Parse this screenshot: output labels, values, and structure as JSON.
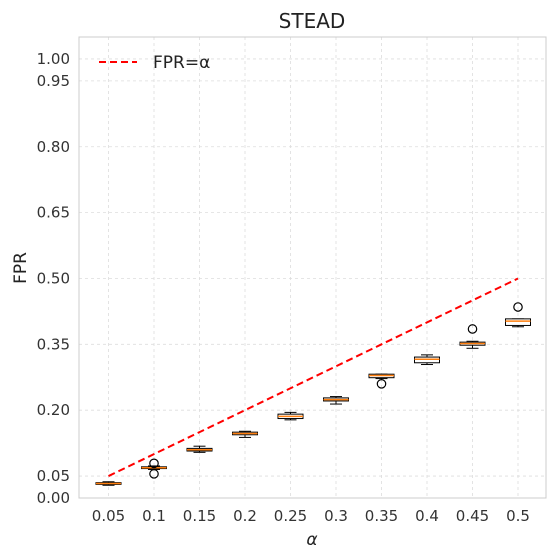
{
  "chart_data": {
    "type": "box",
    "title": "STEAD",
    "xlabel": "α",
    "ylabel": "FPR",
    "ylim": [
      0.0,
      1.05
    ],
    "yticks": [
      "0.00",
      "0.05",
      "0.20",
      "0.35",
      "0.50",
      "0.65",
      "0.80",
      "0.95",
      "1.00"
    ],
    "grid": true,
    "legend": {
      "placement": "top-left",
      "entries": [
        "FPR=α"
      ]
    },
    "colors": {
      "reference_line": "#ff0000",
      "median": "#ff7f0e",
      "box": "#000000",
      "grid": "#dddddd",
      "frame": "#cccccc"
    },
    "categories": [
      "0.05",
      "0.1",
      "0.15",
      "0.2",
      "0.25",
      "0.3",
      "0.35",
      "0.4",
      "0.45",
      "0.5"
    ],
    "reference_line": {
      "name": "FPR=α",
      "x": [
        0.05,
        0.5
      ],
      "y": [
        0.05,
        0.5
      ]
    },
    "boxes": [
      {
        "min": 0.029,
        "q1": 0.031,
        "median": 0.033,
        "q3": 0.035,
        "max": 0.037,
        "outliers": []
      },
      {
        "min": 0.065,
        "q1": 0.067,
        "median": 0.069,
        "q3": 0.071,
        "max": 0.073,
        "outliers": [
          0.055,
          0.079
        ]
      },
      {
        "min": 0.104,
        "q1": 0.107,
        "median": 0.11,
        "q3": 0.113,
        "max": 0.118,
        "outliers": []
      },
      {
        "min": 0.138,
        "q1": 0.144,
        "median": 0.147,
        "q3": 0.15,
        "max": 0.152,
        "outliers": []
      },
      {
        "min": 0.178,
        "q1": 0.181,
        "median": 0.186,
        "q3": 0.191,
        "max": 0.195,
        "outliers": []
      },
      {
        "min": 0.214,
        "q1": 0.221,
        "median": 0.224,
        "q3": 0.228,
        "max": 0.231,
        "outliers": []
      },
      {
        "min": 0.272,
        "q1": 0.274,
        "median": 0.279,
        "q3": 0.282,
        "max": 0.282,
        "outliers": [
          0.26
        ]
      },
      {
        "min": 0.304,
        "q1": 0.308,
        "median": 0.316,
        "q3": 0.321,
        "max": 0.326,
        "outliers": []
      },
      {
        "min": 0.341,
        "q1": 0.348,
        "median": 0.352,
        "q3": 0.355,
        "max": 0.357,
        "outliers": [
          0.385
        ]
      },
      {
        "min": 0.39,
        "q1": 0.393,
        "median": 0.403,
        "q3": 0.408,
        "max": 0.408,
        "outliers": [
          0.435
        ]
      }
    ]
  }
}
